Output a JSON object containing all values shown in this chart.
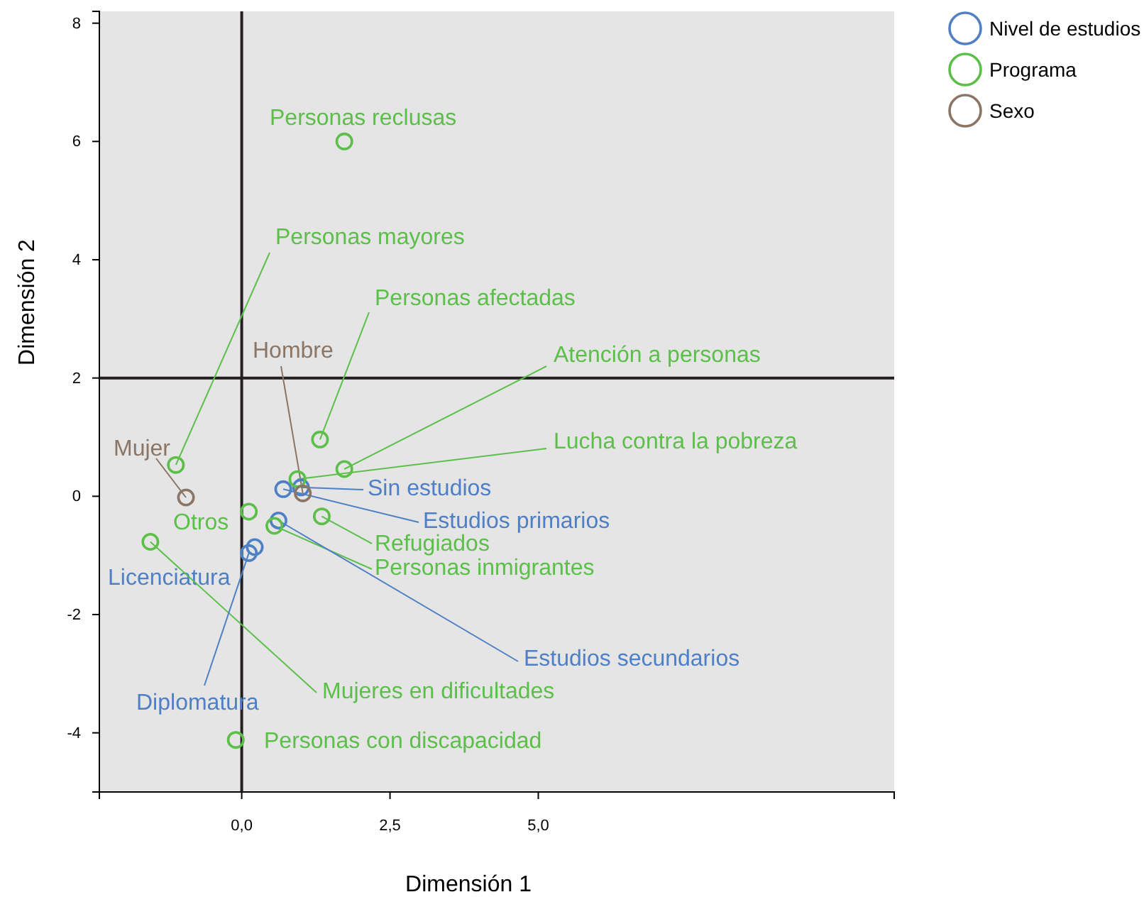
{
  "chart_data": {
    "type": "scatter",
    "xlabel": "Dimensión 1",
    "ylabel": "Dimensión 2",
    "xlim": [
      -2.4,
      11
    ],
    "ylim": [
      -5,
      8.2
    ],
    "xticks": [
      {
        "value": 0,
        "label": "0,0"
      },
      {
        "value": 2.5,
        "label": "2,5"
      },
      {
        "value": 5,
        "label": "5,0"
      }
    ],
    "yticks": [
      -4,
      -2,
      0,
      2,
      4,
      6,
      8
    ],
    "marker": "circle",
    "legend": "top right",
    "grid": false,
    "ref_lines": [
      {
        "axis": "x",
        "value": 0,
        "color": "#231f20"
      },
      {
        "axis": "y",
        "value": 2,
        "color": "#231f20"
      }
    ],
    "series": [
      {
        "name": "Nivel de estudios",
        "color": "#4f7fc4",
        "x": [
          0.7,
          1.0,
          0.62,
          0.12,
          0.22
        ],
        "values": [
          0.12,
          0.15,
          -0.41,
          -0.96,
          -0.86
        ]
      },
      {
        "name": "Programa",
        "color": "#5cbf4a",
        "x": [
          1.73,
          -1.11,
          1.32,
          1.73,
          0.94,
          0.12,
          1.35,
          0.55,
          -1.54,
          -0.1
        ],
        "values": [
          6.0,
          0.53,
          0.96,
          0.46,
          0.29,
          -0.26,
          -0.34,
          -0.5,
          -0.77,
          -4.12
        ]
      },
      {
        "name": "Sexo",
        "color": "#8b7565",
        "x": [
          -0.94,
          1.03
        ],
        "values": [
          -0.02,
          0.05
        ]
      }
    ],
    "annotations": [
      {
        "text": "Personas reclusas",
        "x": 1.73,
        "y": 6.0
      },
      {
        "text": "Personas mayores",
        "x": -1.11,
        "y": 0.53
      },
      {
        "text": "Personas afectadas",
        "x": 1.32,
        "y": 0.96
      },
      {
        "text": "Hombre",
        "x": 1.03,
        "y": 0.05
      },
      {
        "text": "Atención a personas",
        "x": 1.73,
        "y": 0.46
      },
      {
        "text": "Mujer",
        "x": -0.94,
        "y": -0.02
      },
      {
        "text": "Lucha contra la pobreza",
        "x": 0.94,
        "y": 0.29
      },
      {
        "text": "Sin estudios",
        "x": 1.0,
        "y": 0.15
      },
      {
        "text": "Estudios primarios",
        "x": 0.7,
        "y": 0.12
      },
      {
        "text": "Otros",
        "x": 0.12,
        "y": -0.26
      },
      {
        "text": "Refugiados",
        "x": 1.35,
        "y": -0.34
      },
      {
        "text": "Personas inmigrantes",
        "x": 0.55,
        "y": -0.5
      },
      {
        "text": "Licenciatura",
        "x": 0.22,
        "y": -0.86
      },
      {
        "text": "Estudios secundarios",
        "x": 0.62,
        "y": -0.41
      },
      {
        "text": "Mujeres en dificultades",
        "x": -1.54,
        "y": -0.77
      },
      {
        "text": "Diplomatura",
        "x": 0.12,
        "y": -0.96
      },
      {
        "text": "Personas con discapacidad",
        "x": -0.1,
        "y": -4.12
      }
    ]
  }
}
